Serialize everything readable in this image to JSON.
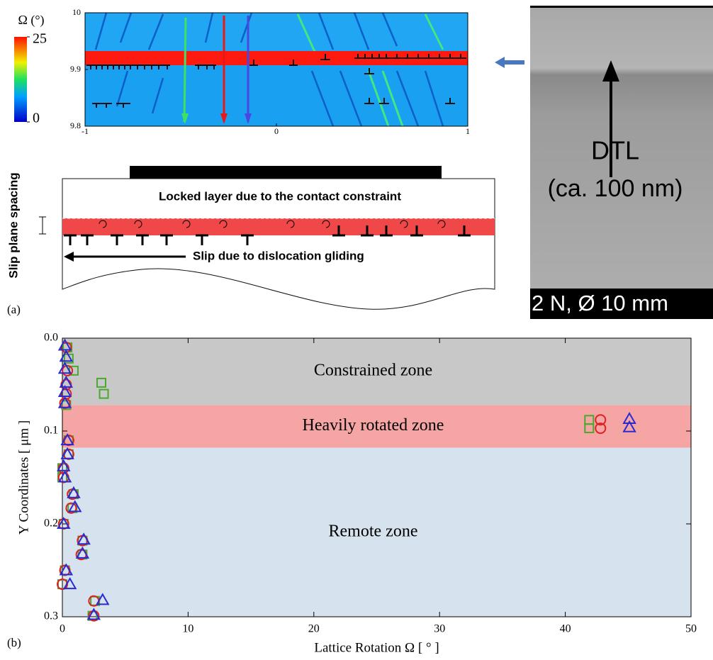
{
  "chart_data": [
    {
      "type": "heatmap",
      "xlim": [
        -1,
        1
      ],
      "xticks": [
        -1,
        0,
        1
      ],
      "ylim": [
        9.8,
        10
      ],
      "yticks": [
        9.8,
        9.9,
        10
      ],
      "colorbar": {
        "label": "Ω (°)",
        "lim": [
          0,
          25
        ],
        "ticks": [
          0,
          25
        ]
      }
    },
    {
      "type": "scatter",
      "x_label": "Lattice Rotation Ω [ ° ]",
      "y_label": "Y Coordinates [ μm ]",
      "xlim": [
        0,
        50
      ],
      "xticks": [
        0,
        10,
        20,
        30,
        40,
        50
      ],
      "ylim": [
        0,
        0.3
      ],
      "yticks": [
        {
          "value": 0,
          "label": "0.0"
        },
        0.1,
        0.2,
        0.3
      ],
      "y_inverted": true,
      "zones": [
        {
          "name": "Constrained zone",
          "range": [
            0,
            0.072
          ],
          "color": "#c8c8c8"
        },
        {
          "name": "Heavily rotated zone",
          "range": [
            0.072,
            0.118
          ],
          "color": "#f6a5a5"
        },
        {
          "name": "Remote zone",
          "range": [
            0.118,
            0.3
          ],
          "color": "#d6e2ee"
        }
      ],
      "series": [
        {
          "marker": "square",
          "color": "#4aa832",
          "x": [
            0.4,
            0.5,
            0.9,
            3.1,
            3.3,
            0.3,
            41.9,
            41.9,
            0.5,
            0.5,
            0,
            0,
            0.9,
            0.8,
            0.1,
            1.6,
            1.6,
            0.2,
            0,
            2.6,
            2.4
          ],
          "values": [
            0.01,
            0.022,
            0.035,
            0.048,
            0.06,
            0.072,
            0.088,
            0.097,
            0.11,
            0.125,
            0.14,
            0.15,
            0.168,
            0.183,
            0.2,
            0.218,
            0.233,
            0.25,
            0.265,
            0.283,
            0.299
          ]
        },
        {
          "marker": "circle",
          "color": "#e02020",
          "x": [
            0.3,
            0.4,
            0.3,
            0.3,
            0.2,
            42.8,
            42.8,
            0.5,
            0.5,
            0.1,
            0.1,
            0.8,
            0.7,
            0.1,
            1.6,
            1.5,
            0.2,
            0,
            2.5,
            2.5
          ],
          "values": [
            0.01,
            0.035,
            0.05,
            0.06,
            0.07,
            0.088,
            0.097,
            0.11,
            0.125,
            0.14,
            0.15,
            0.168,
            0.183,
            0.2,
            0.218,
            0.233,
            0.25,
            0.265,
            0.283,
            0.299
          ]
        },
        {
          "marker": "triangle",
          "color": "#2a2ad0",
          "x": [
            0.2,
            0.3,
            0.2,
            0.3,
            0.2,
            0.2,
            45.1,
            45.1,
            0.4,
            0.4,
            0.1,
            0.2,
            0.9,
            1.0,
            0.1,
            1.7,
            1.6,
            0.3,
            0.6,
            3.2,
            2.5
          ],
          "values": [
            0.008,
            0.02,
            0.033,
            0.048,
            0.058,
            0.07,
            0.087,
            0.096,
            0.11,
            0.125,
            0.138,
            0.15,
            0.167,
            0.182,
            0.2,
            0.217,
            0.232,
            0.25,
            0.265,
            0.282,
            0.298
          ]
        }
      ]
    }
  ],
  "figure": {
    "panel_labels": [
      "(a)",
      "(b)"
    ],
    "schematic": {
      "y_label": "Slip plane spacing",
      "locked": "Locked layer due to the contact constraint",
      "slip": "Slip due to dislocation gliding"
    },
    "tem": {
      "label": "DTL",
      "size": "(ca. 100 nm)",
      "caption": "2 N, Ø 10 mm"
    }
  }
}
